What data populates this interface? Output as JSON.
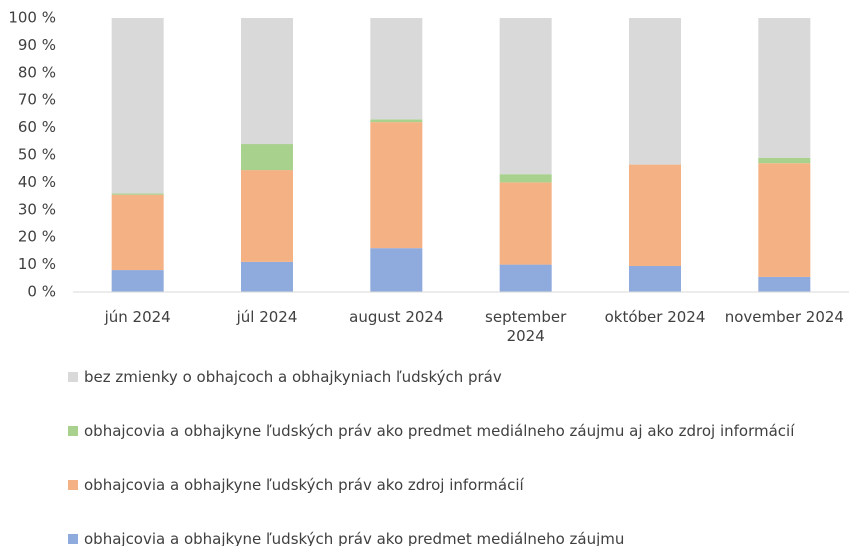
{
  "chart_data": {
    "type": "stacked_bar",
    "categories": [
      "jún 2024",
      "júl 2024",
      "august 2024",
      "september 2024",
      "október 2024",
      "november 2024"
    ],
    "series": [
      {
        "name": "obhajcovia a obhajkyne ľudských práv ako predmet mediálneho záujmu",
        "color": "#8faadc",
        "values": [
          8,
          11,
          16,
          10,
          9.5,
          5.5
        ]
      },
      {
        "name": "obhajcovia a obhajkyne ľudských práv ako zdroj informácií",
        "color": "#f4b183",
        "values": [
          27.5,
          33.5,
          46,
          30,
          37,
          41.5
        ]
      },
      {
        "name": "obhajcovia a obhajkyne ľudských práv ako predmet mediálneho záujmu aj ako zdroj informácií",
        "color": "#a9d18e",
        "values": [
          0.5,
          9.5,
          1,
          3,
          0,
          2
        ]
      },
      {
        "name": "bez zmienky o obhajcoch a obhajkyniach ľudských práv",
        "color": "#d9d9d9",
        "values": [
          64,
          46,
          37,
          57,
          53.5,
          51
        ]
      }
    ],
    "ylim": [
      0,
      100
    ],
    "yticks": [
      {
        "value": 0,
        "label": "0 %"
      },
      {
        "value": 10,
        "label": "10 %"
      },
      {
        "value": 20,
        "label": "20 %"
      },
      {
        "value": 30,
        "label": "30 %"
      },
      {
        "value": 40,
        "label": "40 %"
      },
      {
        "value": 50,
        "label": "50 %"
      },
      {
        "value": 60,
        "label": "60 %"
      },
      {
        "value": 70,
        "label": "70 %"
      },
      {
        "value": 80,
        "label": "80 %"
      },
      {
        "value": 90,
        "label": "90 %"
      },
      {
        "value": 100,
        "label": "100 %"
      }
    ],
    "grid": false
  }
}
